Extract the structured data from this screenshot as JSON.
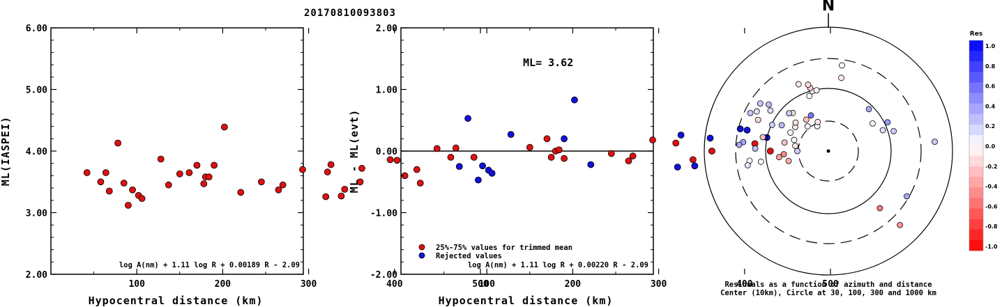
{
  "title": "20170810093803",
  "colors": {
    "red": "#dd1111",
    "blue": "#1111dd",
    "frame": "#000000"
  },
  "chart_data": [
    {
      "type": "scatter",
      "ylabel": "ML(IASPEI)",
      "xlabel": "Hypocentral distance (km)",
      "xlim": [
        0,
        500
      ],
      "ylim": [
        2.0,
        6.0
      ],
      "xticks": [
        "100",
        "200",
        "300",
        "400",
        "500"
      ],
      "yticks": [
        "2.00",
        "3.00",
        "4.00",
        "5.00",
        "6.00"
      ],
      "formula": "log A(nm) + 1.11 log R + 0.00189 R - 2.09",
      "points": [
        [
          42,
          3.65
        ],
        [
          58,
          3.5
        ],
        [
          64,
          3.65
        ],
        [
          68,
          3.35
        ],
        [
          78,
          4.13
        ],
        [
          85,
          3.48
        ],
        [
          90,
          3.12
        ],
        [
          95,
          3.37
        ],
        [
          102,
          3.28
        ],
        [
          106,
          3.23
        ],
        [
          128,
          3.87
        ],
        [
          137,
          3.45
        ],
        [
          150,
          3.63
        ],
        [
          161,
          3.65
        ],
        [
          170,
          3.77
        ],
        [
          178,
          3.47
        ],
        [
          180,
          3.58
        ],
        [
          184,
          3.58
        ],
        [
          190,
          3.77
        ],
        [
          202,
          4.39
        ],
        [
          221,
          3.33
        ],
        [
          245,
          3.5
        ],
        [
          265,
          3.37
        ],
        [
          270,
          3.45
        ],
        [
          293,
          3.7
        ],
        [
          320,
          3.26
        ],
        [
          322,
          3.66
        ],
        [
          326,
          3.78
        ],
        [
          338,
          3.27
        ],
        [
          342,
          3.38
        ],
        [
          360,
          3.5
        ],
        [
          362,
          3.72
        ],
        [
          395,
          3.86
        ],
        [
          403,
          3.85
        ],
        [
          412,
          3.6
        ],
        [
          426,
          3.7
        ],
        [
          430,
          3.48
        ]
      ]
    },
    {
      "type": "scatter",
      "ylabel": "ML - ML(evt)",
      "xlabel": "Hypocentral distance (km)",
      "xlim": [
        0,
        500
      ],
      "ylim": [
        -2.0,
        2.0
      ],
      "xticks": [
        "100",
        "200",
        "300",
        "400",
        "500"
      ],
      "yticks": [
        "-2.00",
        "-1.00",
        "0.00",
        "1.00",
        "2.00"
      ],
      "ml_label": "ML= 3.62",
      "formula": "log A(nm) + 1.11 log R + 0.00220 R - 2.09",
      "legend": [
        "25%-75% values for trimmed mean",
        "Rejected values"
      ],
      "series": [
        {
          "name": "25%-75% values for trimmed mean",
          "color": "red",
          "points": [
            [
              42,
              0.04
            ],
            [
              58,
              -0.1
            ],
            [
              64,
              0.05
            ],
            [
              85,
              -0.1
            ],
            [
              150,
              0.06
            ],
            [
              170,
              0.2
            ],
            [
              175,
              -0.1
            ],
            [
              180,
              0.0
            ],
            [
              184,
              0.02
            ],
            [
              190,
              -0.12
            ],
            [
              245,
              -0.04
            ],
            [
              265,
              -0.16
            ],
            [
              270,
              -0.08
            ],
            [
              293,
              0.18
            ],
            [
              320,
              0.13
            ],
            [
              340,
              -0.14
            ],
            [
              362,
              0.0
            ],
            [
              412,
              0.12
            ],
            [
              430,
              0.0
            ]
          ]
        },
        {
          "name": "Rejected values",
          "color": "blue",
          "points": [
            [
              68,
              -0.25
            ],
            [
              78,
              0.53
            ],
            [
              90,
              -0.47
            ],
            [
              95,
              -0.24
            ],
            [
              102,
              -0.31
            ],
            [
              106,
              -0.36
            ],
            [
              128,
              0.27
            ],
            [
              190,
              0.2
            ],
            [
              202,
              0.83
            ],
            [
              221,
              -0.22
            ],
            [
              322,
              -0.26
            ],
            [
              326,
              0.26
            ],
            [
              342,
              -0.24
            ],
            [
              360,
              0.21
            ],
            [
              395,
              0.36
            ],
            [
              403,
              0.34
            ],
            [
              426,
              0.22
            ]
          ]
        }
      ]
    },
    {
      "type": "scatter",
      "subtype": "polar",
      "north_label": "N",
      "caption": [
        "Residuals as a function of azimuth and distance",
        "Center (10km), Circle at 30, 100, 300 and 1000 km"
      ],
      "colorbar": {
        "title": "Res",
        "min": -1.0,
        "max": 1.0,
        "ticks": [
          "1.0",
          "0.8",
          "0.6",
          "0.4",
          "0.2",
          "0.0",
          "-0.2",
          "-0.4",
          "-0.6",
          "-0.8",
          "-1.0"
        ]
      },
      "points": [
        [
          -24,
          0.22,
          0.04
        ],
        [
          -20,
          0.25,
          -0.1
        ],
        [
          -40,
          0.26,
          0.05
        ],
        [
          -35,
          0.31,
          -0.25
        ],
        [
          -26,
          0.32,
          0.53
        ],
        [
          -54,
          0.33,
          -0.1
        ],
        [
          -49,
          0.35,
          -0.12
        ],
        [
          -72,
          0.29,
          0.0
        ],
        [
          -81,
          0.27,
          -0.1
        ],
        [
          -64,
          0.34,
          0.02
        ],
        [
          -90,
          0.25,
          0.2
        ],
        [
          -94,
          0.36,
          -0.47
        ],
        [
          -79,
          0.36,
          -0.24
        ],
        [
          -104,
          0.33,
          -0.31
        ],
        [
          -97,
          0.4,
          -0.36
        ],
        [
          -61,
          0.43,
          0.27
        ],
        [
          -43,
          0.42,
          -0.14
        ],
        [
          -46,
          0.44,
          0.2
        ],
        [
          -19,
          0.47,
          0.0
        ],
        [
          -15,
          0.5,
          0.06
        ],
        [
          -16,
          0.53,
          -0.22
        ],
        [
          -11,
          0.5,
          -0.04
        ],
        [
          -17,
          0.56,
          -0.16
        ],
        [
          -24,
          0.59,
          -0.08
        ],
        [
          -65,
          0.5,
          0.18
        ],
        [
          -78,
          0.54,
          -0.26
        ],
        [
          -55,
          0.57,
          0.13
        ],
        [
          -52,
          0.61,
          0.26
        ],
        [
          -66,
          0.62,
          -0.14
        ],
        [
          -88,
          0.59,
          0.24
        ],
        [
          -99,
          0.55,
          0.0
        ],
        [
          -55,
          0.67,
          0.21
        ],
        [
          -84,
          0.69,
          0.36
        ],
        [
          -86,
          0.72,
          0.34
        ],
        [
          -61,
          0.66,
          0.12
        ],
        [
          -64,
          0.7,
          0.22
        ],
        [
          -97,
          0.64,
          0.0
        ],
        [
          -100,
          0.66,
          0.11
        ],
        [
          9,
          0.7,
          0.0
        ],
        [
          10,
          0.6,
          -0.08
        ],
        [
          44,
          0.47,
          0.34
        ],
        [
          58,
          0.42,
          0.02
        ],
        [
          69,
          0.47,
          0.13
        ],
        [
          64,
          0.53,
          0.4
        ],
        [
          73,
          0.55,
          0.2
        ],
        [
          85,
          0.86,
          0.22
        ],
        [
          136,
          0.83,
          -0.42
        ],
        [
          120,
          0.73,
          0.36
        ],
        [
          138,
          0.62,
          -0.52
        ]
      ]
    }
  ]
}
